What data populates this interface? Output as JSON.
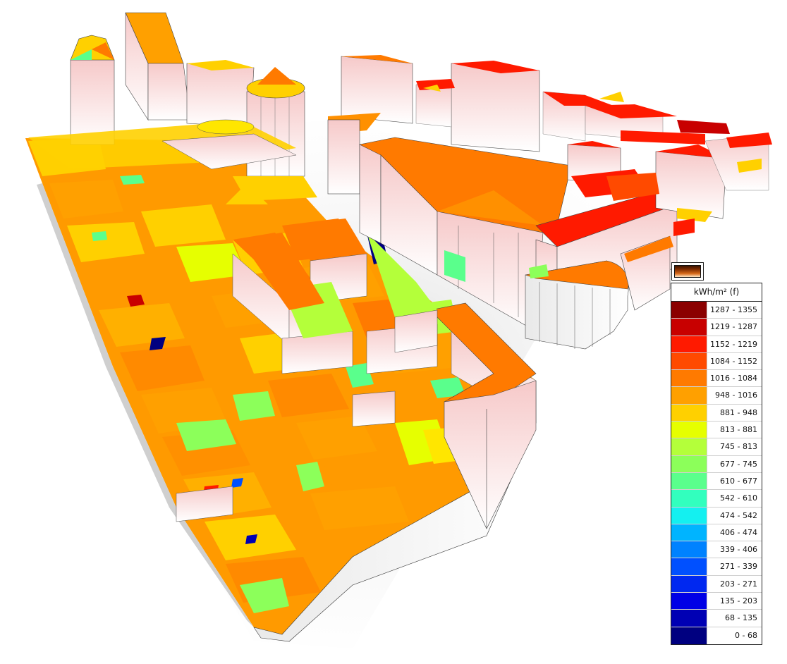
{
  "legend": {
    "title": "kWh/m² (f)",
    "classes": [
      {
        "label": "1287 - 1355",
        "color": "#8b0000"
      },
      {
        "label": "1219 - 1287",
        "color": "#c80000"
      },
      {
        "label": "1152 - 1219",
        "color": "#ff1a00"
      },
      {
        "label": "1084 - 1152",
        "color": "#ff4a00"
      },
      {
        "label": "1016 - 1084",
        "color": "#ff7a00"
      },
      {
        "label": "948 - 1016",
        "color": "#ffa000"
      },
      {
        "label": "881 - 948",
        "color": "#ffd000"
      },
      {
        "label": "813 - 881",
        "color": "#e6ff00"
      },
      {
        "label": "745 - 813",
        "color": "#b4ff3a"
      },
      {
        "label": "677 - 745",
        "color": "#8cff5a"
      },
      {
        "label": "610 - 677",
        "color": "#5aff8c"
      },
      {
        "label": "542 - 610",
        "color": "#32ffbe"
      },
      {
        "label": "474 - 542",
        "color": "#14f0f0"
      },
      {
        "label": "406 - 474",
        "color": "#00b4ff"
      },
      {
        "label": "339 - 406",
        "color": "#0082ff"
      },
      {
        "label": "271 - 339",
        "color": "#0050ff"
      },
      {
        "label": "203 - 271",
        "color": "#0028f0"
      },
      {
        "label": "135 - 203",
        "color": "#0000e6"
      },
      {
        "label": "68 - 135",
        "color": "#0000b4"
      },
      {
        "label": "0 - 68",
        "color": "#000080"
      }
    ]
  }
}
